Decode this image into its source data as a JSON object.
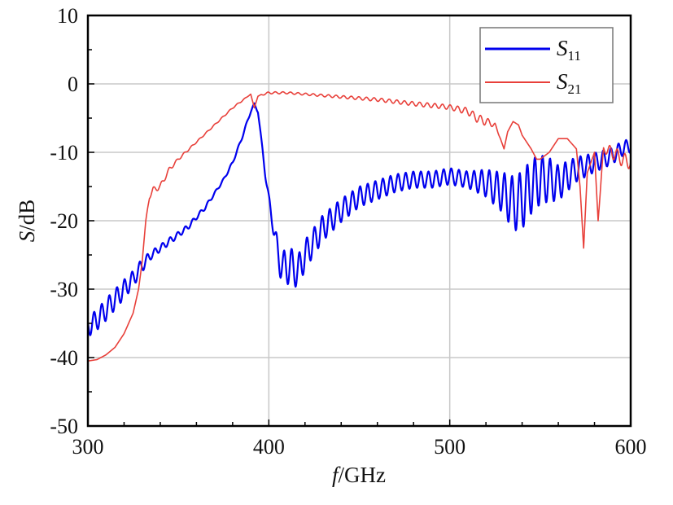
{
  "chart_data": {
    "type": "line",
    "title": "",
    "xlabel": {
      "var": "f",
      "unit": "/GHz"
    },
    "ylabel": {
      "var": "S",
      "unit": "/dB"
    },
    "xlim": [
      300,
      600
    ],
    "ylim": [
      -50,
      10
    ],
    "xticks": [
      "300",
      "400",
      "500",
      "600"
    ],
    "yticks": [
      "10",
      "0",
      "-10",
      "-20",
      "-30",
      "-40",
      "-50"
    ],
    "grid": "vertical and horizontal major lines",
    "legend_position": "top-right",
    "series": [
      {
        "name": "S",
        "subscript": "11",
        "color": "#0000ee",
        "x": [
          300,
          305,
          310,
          315,
          320,
          325,
          330,
          335,
          340,
          345,
          350,
          355,
          360,
          365,
          370,
          375,
          380,
          385,
          390,
          392,
          394,
          396,
          398,
          400,
          402,
          405,
          408,
          412,
          416,
          420,
          425,
          430,
          440,
          450,
          460,
          470,
          480,
          490,
          500,
          510,
          520,
          530,
          535,
          540,
          545,
          550,
          555,
          560,
          565,
          570,
          575,
          580,
          585,
          590,
          595,
          600
        ],
        "y": [
          -35.5,
          -34.5,
          -33,
          -31.5,
          -30,
          -28.5,
          -26.5,
          -25,
          -24,
          -23,
          -22,
          -21,
          -19.5,
          -18,
          -16,
          -14,
          -11.5,
          -8,
          -4,
          -3,
          -4,
          -8.5,
          -13,
          -17,
          -20,
          -25,
          -27,
          -26.5,
          -27.5,
          -25,
          -23,
          -21,
          -18.5,
          -16.5,
          -15.5,
          -14.5,
          -14,
          -14,
          -13.5,
          -14,
          -14.5,
          -16,
          -17.5,
          -17,
          -15,
          -14,
          -14,
          -14.5,
          -13.5,
          -12.5,
          -12,
          -11.5,
          -11,
          -10.5,
          -9.5,
          -9
        ],
        "ripple": [
          1.5,
          1.5,
          1.6,
          1.5,
          1.4,
          1.2,
          1.0,
          0.6,
          0.5,
          0.5,
          0.4,
          0.4,
          0.3,
          0.3,
          0.2,
          0.2,
          0.2,
          0.2,
          0.2,
          0.2,
          0.2,
          0.2,
          0.5,
          0.8,
          1.0,
          2.2,
          2.6,
          2.6,
          2.4,
          2.2,
          2.0,
          1.9,
          1.7,
          1.5,
          1.4,
          1.3,
          1.2,
          1.2,
          1.2,
          1.2,
          2.0,
          3.0,
          4.0,
          4.2,
          4.0,
          3.6,
          3.2,
          2.6,
          2.2,
          1.8,
          1.6,
          1.4,
          1.3,
          1.2,
          1.1,
          1.0
        ]
      },
      {
        "name": "S",
        "subscript": "21",
        "color": "#e8403a",
        "x": [
          300,
          305,
          310,
          315,
          320,
          325,
          328,
          330,
          332,
          334,
          336,
          340,
          345,
          350,
          360,
          370,
          380,
          385,
          390,
          392,
          394,
          396,
          400,
          410,
          420,
          440,
          460,
          480,
          500,
          510,
          515,
          520,
          525,
          528,
          530,
          532,
          535,
          538,
          540,
          545,
          548,
          550,
          555,
          560,
          565,
          570,
          572,
          574,
          576,
          580,
          582,
          585,
          590,
          595,
          600
        ],
        "y": [
          -40.5,
          -40.3,
          -39.6,
          -38.5,
          -36.5,
          -33.5,
          -30,
          -26,
          -20,
          -16.5,
          -15.5,
          -15,
          -12.5,
          -11,
          -8.5,
          -6,
          -3.5,
          -2.5,
          -1.5,
          -3.5,
          -1.8,
          -1.6,
          -1.3,
          -1.3,
          -1.5,
          -1.9,
          -2.3,
          -2.9,
          -3.4,
          -4,
          -5,
          -5.5,
          -6,
          -8,
          -9.5,
          -7,
          -5.5,
          -6,
          -7.5,
          -9.5,
          -11,
          -11,
          -10,
          -8,
          -8,
          -9.5,
          -15,
          -24,
          -13,
          -10,
          -20,
          -9.5,
          -10,
          -11,
          -11.5
        ],
        "ripple": [
          0,
          0,
          0,
          0,
          0,
          0,
          0,
          0,
          0,
          0.3,
          0.4,
          0.4,
          0.3,
          0.2,
          0.1,
          0.1,
          0.1,
          0.1,
          0,
          0,
          0,
          0.1,
          0.15,
          0.15,
          0.15,
          0.2,
          0.25,
          0.3,
          0.35,
          0.5,
          0.6,
          0.6,
          0.3,
          0,
          0,
          0,
          0,
          0,
          0,
          0,
          0,
          0,
          0,
          0,
          0,
          0,
          0,
          0,
          0,
          0,
          0,
          0.5,
          1.0,
          1.0,
          1.0
        ]
      }
    ]
  }
}
